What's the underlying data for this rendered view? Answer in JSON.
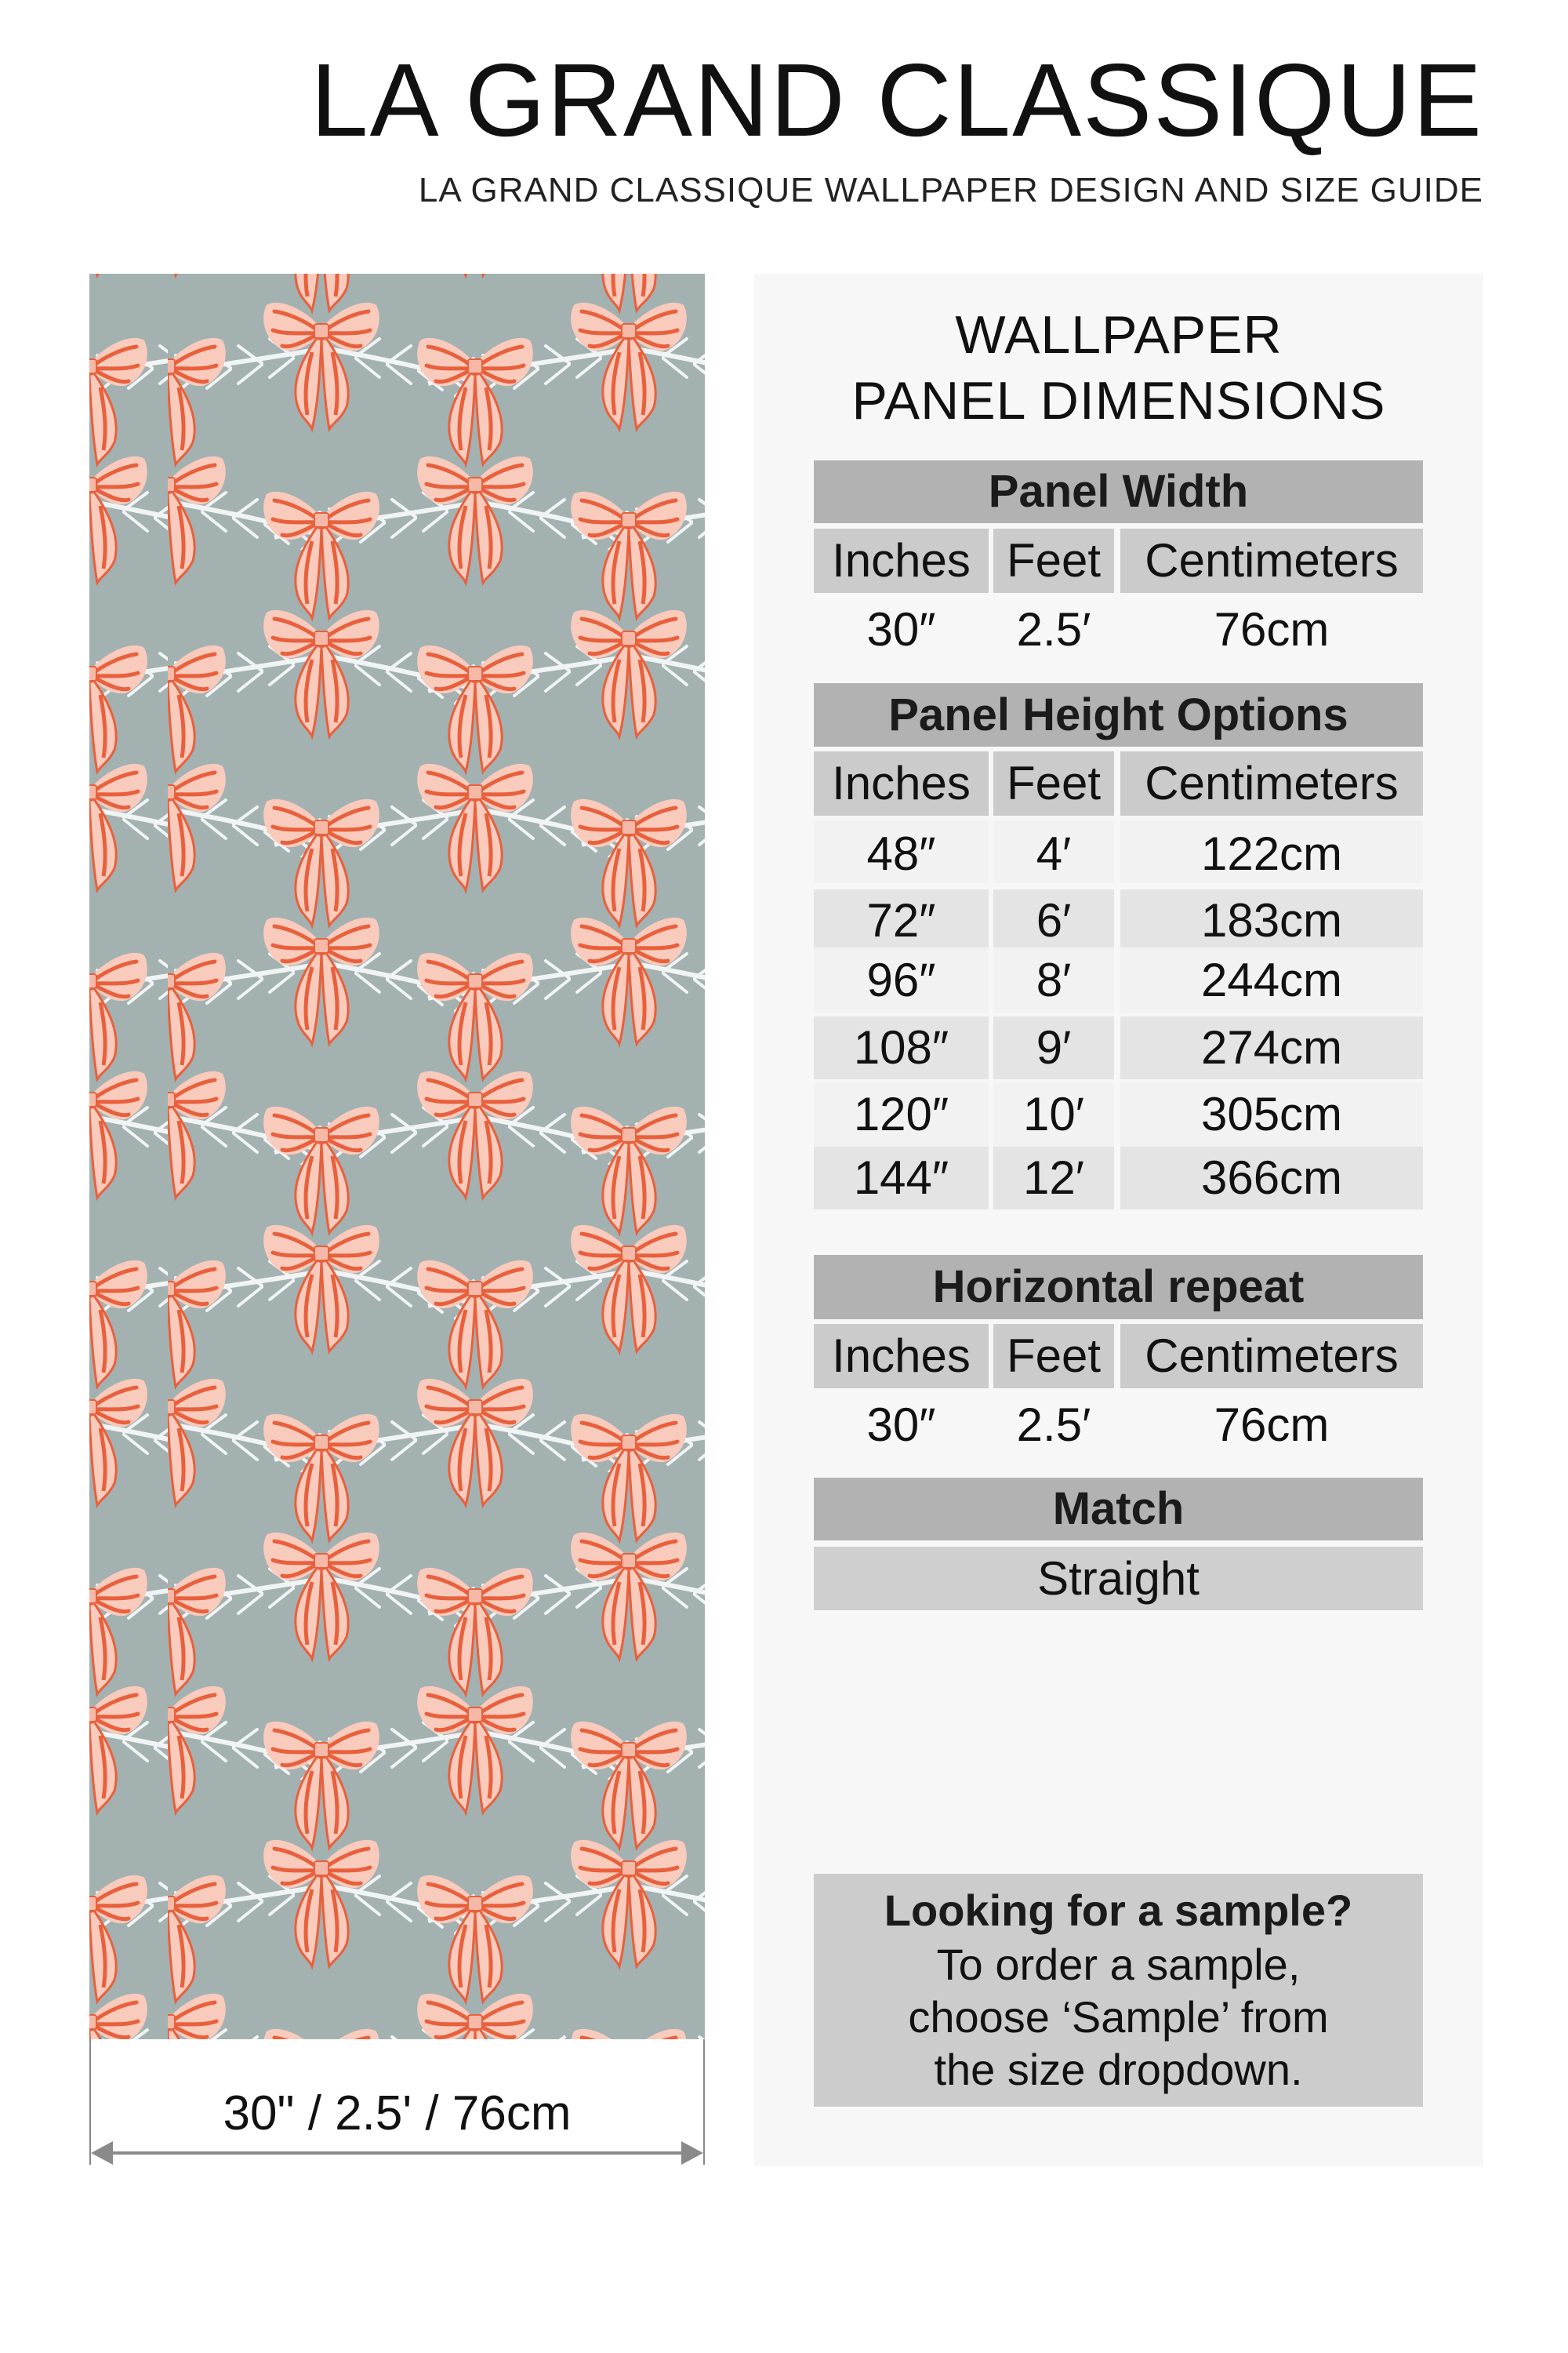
{
  "header": {
    "title": "LA GRAND CLASSIQUE",
    "subtitle": "LA GRAND CLASSIQUE WALLPAPER DESIGN AND SIZE GUIDE"
  },
  "preview": {
    "width_label": "30\" / 2.5' / 76cm",
    "colors": {
      "background": "#a3b1b1",
      "bow_light": "#f9cbbd",
      "bow_stripe": "#e8603c",
      "pine": "#f1f4f4"
    }
  },
  "info": {
    "heading_line1": "WALLPAPER",
    "heading_line2": "PANEL DIMENSIONS",
    "columns": [
      "Inches",
      "Feet",
      "Centimeters"
    ],
    "panel_width": {
      "title": "Panel Width",
      "row": [
        "30″",
        "2.5′",
        "76cm"
      ]
    },
    "panel_height": {
      "title": "Panel Height Options",
      "rows": [
        [
          "48″",
          "4′",
          "122cm"
        ],
        [
          "72″",
          "6′",
          "183cm"
        ],
        [
          "96″",
          "8′",
          "244cm"
        ],
        [
          "108″",
          "9′",
          "274cm"
        ],
        [
          "120″",
          "10′",
          "305cm"
        ],
        [
          "144″",
          "12′",
          "366cm"
        ]
      ]
    },
    "horizontal_repeat": {
      "title": "Horizontal repeat",
      "row": [
        "30″",
        "2.5′",
        "76cm"
      ]
    },
    "match": {
      "title": "Match",
      "value": "Straight"
    },
    "sample": {
      "title": "Looking for a sample?",
      "lines": [
        "To order a sample,",
        "choose ‘Sample’ from",
        "the size dropdown."
      ]
    }
  }
}
